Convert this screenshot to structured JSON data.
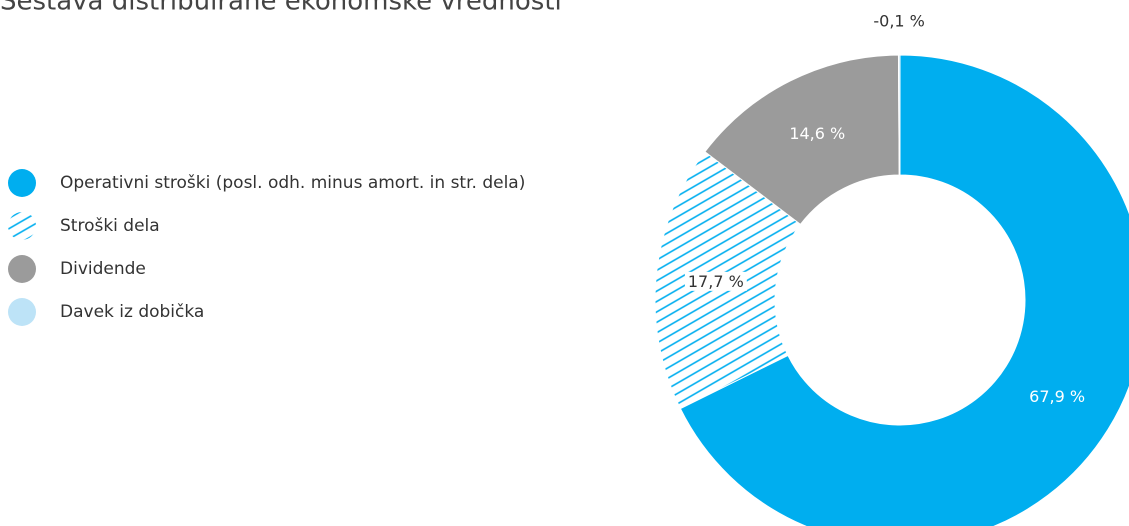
{
  "chart_data": {
    "type": "donut",
    "title": "Sestava distribuirane ekonomske vrednosti",
    "categories": [
      "Operativni stroški (posl. odh. minus amort. in str. dela)",
      "Stroški dela",
      "Dividende",
      "Davek iz dobička"
    ],
    "values": [
      67.9,
      17.7,
      14.6,
      -0.1
    ],
    "value_labels": [
      "67,9 %",
      "17,7 %",
      "14,6 %",
      "-0,1 %"
    ],
    "colors": [
      "#00aeef",
      "hatch",
      "#9b9b9b",
      "#bde3f7"
    ],
    "legend": "left"
  }
}
